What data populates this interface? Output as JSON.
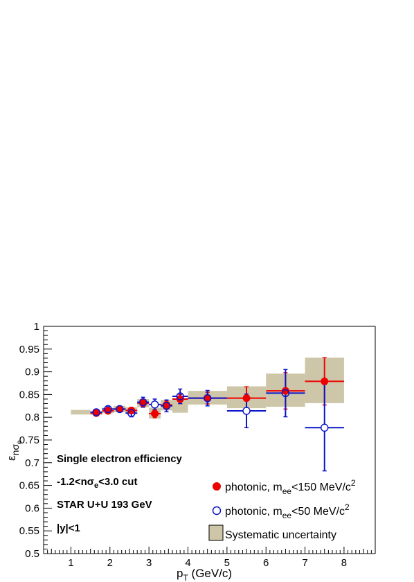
{
  "chart_data": {
    "type": "scatter",
    "xlabel": "p",
    "xlabel_sub": "T",
    "xlabel_unit": " (GeV/c)",
    "ylabel": "ε",
    "ylabel_sub": "nσ",
    "ylabel_subsub": "e",
    "xlim": [
      0.3,
      8.8
    ],
    "ylim": [
      0.5,
      1.0
    ],
    "x_ticks": [
      1,
      2,
      3,
      4,
      5,
      6,
      7,
      8
    ],
    "y_ticks": [
      0.5,
      0.55,
      0.6,
      0.65,
      0.7,
      0.75,
      0.8,
      0.85,
      0.9,
      0.95,
      1.0
    ],
    "y_tick_labels": [
      "0.5",
      "0.55",
      "0.6",
      "0.65",
      "0.7",
      "0.75",
      "0.8",
      "0.85",
      "0.9",
      "0.95",
      "1"
    ],
    "annotations": [
      "Single electron efficiency",
      "-1.2<nσ",
      "e",
      "<3.0 cut",
      "STAR U+U 193 GeV",
      "|y|<1"
    ],
    "legend": {
      "position": "bottom-right",
      "entries": [
        {
          "text": "photonic, m",
          "sub": "ee",
          "rest": "<150 MeV/c",
          "sup": "2"
        },
        {
          "text": "photonic, m",
          "sub": "ee",
          "rest": "<50 MeV/c",
          "sup": "2"
        },
        {
          "text": "Systematic uncertainty"
        }
      ]
    },
    "colors": {
      "series_150": "#ee0000",
      "series_50": "#0a14c8",
      "systematic": "#cdc6a8"
    },
    "series": [
      {
        "name": "photonic, m_ee<150 MeV/c^2",
        "marker": "filled-circle",
        "points": [
          {
            "x": 1.65,
            "y": 0.809,
            "xerr": 0.15,
            "yerr": 0.005
          },
          {
            "x": 1.95,
            "y": 0.814,
            "xerr": 0.15,
            "yerr": 0.005
          },
          {
            "x": 2.25,
            "y": 0.818,
            "xerr": 0.15,
            "yerr": 0.005
          },
          {
            "x": 2.55,
            "y": 0.815,
            "xerr": 0.15,
            "yerr": 0.006
          },
          {
            "x": 2.85,
            "y": 0.831,
            "xerr": 0.15,
            "yerr": 0.008
          },
          {
            "x": 3.15,
            "y": 0.808,
            "xerr": 0.15,
            "yerr": 0.009
          },
          {
            "x": 3.45,
            "y": 0.827,
            "xerr": 0.15,
            "yerr": 0.009
          },
          {
            "x": 3.8,
            "y": 0.84,
            "xerr": 0.2,
            "yerr": 0.01
          },
          {
            "x": 4.5,
            "y": 0.842,
            "xerr": 0.5,
            "yerr": 0.013
          },
          {
            "x": 5.5,
            "y": 0.842,
            "xerr": 0.5,
            "yerr": 0.025
          },
          {
            "x": 6.5,
            "y": 0.858,
            "xerr": 0.5,
            "yerr": 0.04
          },
          {
            "x": 7.5,
            "y": 0.879,
            "xerr": 0.5,
            "yerr": 0.052
          }
        ]
      },
      {
        "name": "photonic, m_ee<50 MeV/c^2",
        "marker": "open-circle",
        "points": [
          {
            "x": 1.65,
            "y": 0.811,
            "xerr": 0.15,
            "yerr": 0.005
          },
          {
            "x": 1.95,
            "y": 0.818,
            "xerr": 0.15,
            "yerr": 0.005
          },
          {
            "x": 2.25,
            "y": 0.818,
            "xerr": 0.15,
            "yerr": 0.006
          },
          {
            "x": 2.55,
            "y": 0.809,
            "xerr": 0.15,
            "yerr": 0.008
          },
          {
            "x": 2.85,
            "y": 0.833,
            "xerr": 0.15,
            "yerr": 0.011
          },
          {
            "x": 3.15,
            "y": 0.828,
            "xerr": 0.15,
            "yerr": 0.012
          },
          {
            "x": 3.45,
            "y": 0.825,
            "xerr": 0.15,
            "yerr": 0.013
          },
          {
            "x": 3.8,
            "y": 0.846,
            "xerr": 0.2,
            "yerr": 0.016
          },
          {
            "x": 4.5,
            "y": 0.842,
            "xerr": 0.5,
            "yerr": 0.017
          },
          {
            "x": 5.5,
            "y": 0.814,
            "xerr": 0.5,
            "yerr": 0.037
          },
          {
            "x": 6.5,
            "y": 0.853,
            "xerr": 0.5,
            "yerr": 0.052
          },
          {
            "x": 7.5,
            "y": 0.777,
            "xerr": 0.5,
            "yerr": 0.095
          }
        ]
      }
    ],
    "systematic_boxes": [
      {
        "x0": 1.0,
        "x1": 1.5,
        "y0": 0.806,
        "y1": 0.816
      },
      {
        "x0": 1.5,
        "x1": 1.8,
        "y0": 0.805,
        "y1": 0.813
      },
      {
        "x0": 1.8,
        "x1": 2.1,
        "y0": 0.809,
        "y1": 0.821
      },
      {
        "x0": 2.1,
        "x1": 2.4,
        "y0": 0.811,
        "y1": 0.825
      },
      {
        "x0": 2.4,
        "x1": 2.7,
        "y0": 0.809,
        "y1": 0.822
      },
      {
        "x0": 2.7,
        "x1": 3.0,
        "y0": 0.822,
        "y1": 0.84
      },
      {
        "x0": 3.0,
        "x1": 3.3,
        "y0": 0.797,
        "y1": 0.821
      },
      {
        "x0": 3.3,
        "x1": 3.6,
        "y0": 0.815,
        "y1": 0.838
      },
      {
        "x0": 3.6,
        "x1": 4.0,
        "y0": 0.81,
        "y1": 0.842
      },
      {
        "x0": 4.0,
        "x1": 5.0,
        "y0": 0.828,
        "y1": 0.858
      },
      {
        "x0": 5.0,
        "x1": 6.0,
        "y0": 0.82,
        "y1": 0.868
      },
      {
        "x0": 6.0,
        "x1": 7.0,
        "y0": 0.823,
        "y1": 0.896
      },
      {
        "x0": 7.0,
        "x1": 8.0,
        "y0": 0.831,
        "y1": 0.931
      }
    ]
  }
}
